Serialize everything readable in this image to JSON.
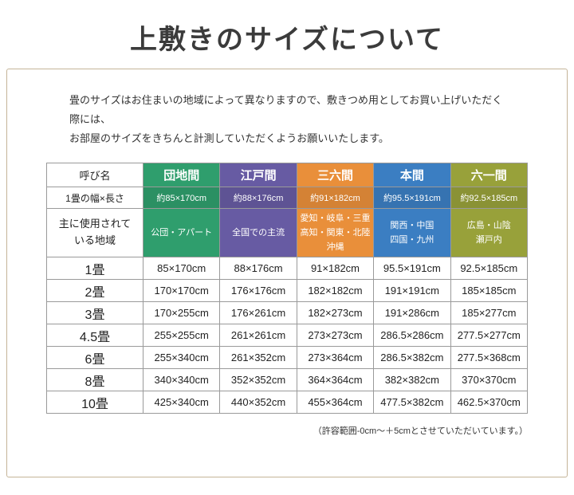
{
  "page": {
    "title": "上敷きのサイズについて",
    "intro": "畳のサイズはお住まいの地域によって異なりますので、敷きつめ用としてお買い上げいただく際には、\nお部屋のサイズをきちんと計測していただくようお願いいたします。",
    "footnote": "（許容範囲-0cm～＋5cmとさせていただいています。）"
  },
  "table": {
    "corner": "呼び名",
    "size_row_label": "1畳の幅×長さ",
    "region_row_label": "主に使用されて\nいる地域",
    "columns": [
      {
        "name": "団地間",
        "color": "#2f9e6d",
        "size": "約85×170cm",
        "region": "公団・アパート"
      },
      {
        "name": "江戸間",
        "color": "#675ba3",
        "size": "約88×176cm",
        "region": "全国での主流"
      },
      {
        "name": "三六間",
        "color": "#e98f3a",
        "size": "約91×182cm",
        "region": "愛知・岐阜・三重\n高知・関東・北陸\n沖縄"
      },
      {
        "name": "本間",
        "color": "#3b7ec2",
        "size": "約95.5×191cm",
        "region": "関西・中国\n四国・九州"
      },
      {
        "name": "六一間",
        "color": "#98a13a",
        "size": "約92.5×185cm",
        "region": "広島・山陰\n瀬戸内"
      }
    ],
    "rows": [
      {
        "label": "1畳",
        "values": [
          "85×170cm",
          "88×176cm",
          "91×182cm",
          "95.5×191cm",
          "92.5×185cm"
        ]
      },
      {
        "label": "2畳",
        "values": [
          "170×170cm",
          "176×176cm",
          "182×182cm",
          "191×191cm",
          "185×185cm"
        ]
      },
      {
        "label": "3畳",
        "values": [
          "170×255cm",
          "176×261cm",
          "182×273cm",
          "191×286cm",
          "185×277cm"
        ]
      },
      {
        "label": "4.5畳",
        "values": [
          "255×255cm",
          "261×261cm",
          "273×273cm",
          "286.5×286cm",
          "277.5×277cm"
        ]
      },
      {
        "label": "6畳",
        "values": [
          "255×340cm",
          "261×352cm",
          "273×364cm",
          "286.5×382cm",
          "277.5×368cm"
        ]
      },
      {
        "label": "8畳",
        "values": [
          "340×340cm",
          "352×352cm",
          "364×364cm",
          "382×382cm",
          "370×370cm"
        ]
      },
      {
        "label": "10畳",
        "values": [
          "425×340cm",
          "440×352cm",
          "455×364cm",
          "477.5×382cm",
          "462.5×370cm"
        ]
      }
    ]
  }
}
